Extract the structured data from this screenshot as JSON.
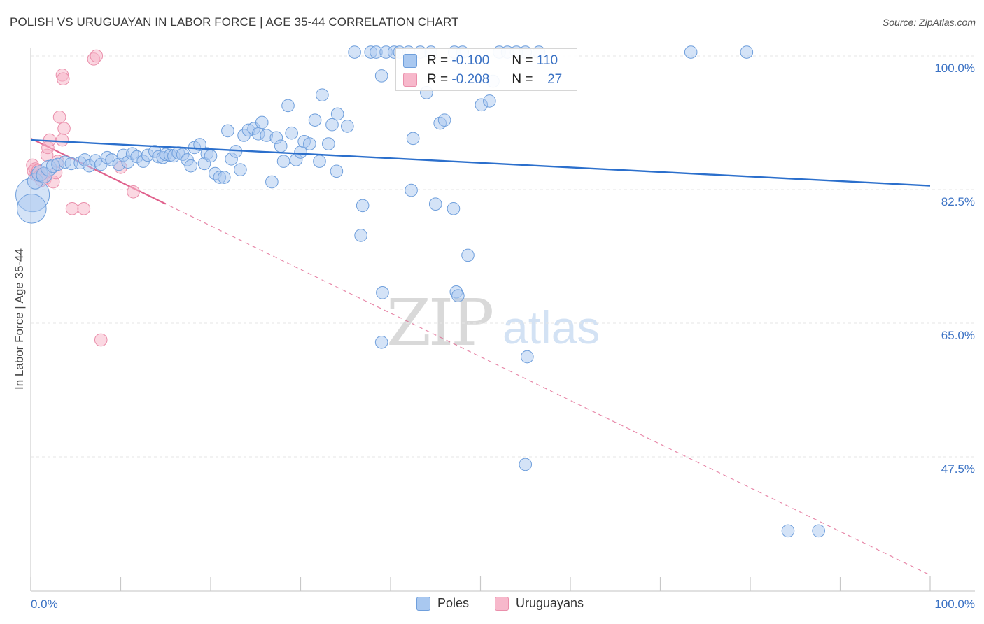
{
  "header": {
    "title": "POLISH VS URUGUAYAN IN LABOR FORCE | AGE 35-44 CORRELATION CHART",
    "source": "Source: ZipAtlas.com"
  },
  "watermark": {
    "zip": "ZIP",
    "atlas": "atlas"
  },
  "stats_legend": {
    "r_label": "R =",
    "n_label": "N =",
    "rows": [
      {
        "r": "-0.100",
        "n": "110",
        "color": "#a9c8f0"
      },
      {
        "r": "-0.208",
        "n": "27",
        "color": "#f7b8cb"
      }
    ]
  },
  "bottom_legend": [
    "Poles",
    "Uruguayans"
  ],
  "colors": {
    "poles_fill": "#a9c8f0",
    "poles_stroke": "#6f9fdc",
    "poles_line": "#2b6fcc",
    "uru_fill": "#f7b8cb",
    "uru_stroke": "#ea8fab",
    "uru_line": "#e0608c",
    "tick_text": "#3b72c4",
    "grid": "#e6e6e6"
  },
  "chart_data": {
    "type": "scatter",
    "title": "POLISH VS URUGUAYAN IN LABOR FORCE | AGE 35-44 CORRELATION CHART",
    "xlabel": "",
    "ylabel": "In Labor Force | Age 35-44",
    "xlim": [
      0,
      100
    ],
    "ylim": [
      32,
      101.5
    ],
    "x_tick_labels": [
      "0.0%",
      "100.0%"
    ],
    "y_ticks": [
      100,
      82.5,
      65,
      47.5
    ],
    "y_tick_labels": [
      "100.0%",
      "82.5%",
      "65.0%",
      "47.5%"
    ],
    "grid": "horizontal dashed",
    "legend_position": "bottom",
    "series": [
      {
        "name": "Poles",
        "r": -0.1,
        "n": 110,
        "trend": {
          "x": [
            0,
            100
          ],
          "y": [
            89.0,
            83.0
          ]
        },
        "points": [
          [
            0.2,
            81.8,
            30
          ],
          [
            0.1,
            80.0,
            26
          ],
          [
            0.5,
            83.6,
            14
          ],
          [
            1.0,
            84.6,
            14
          ],
          [
            1.5,
            84.4,
            14
          ],
          [
            2.0,
            85.3,
            14
          ],
          [
            2.5,
            85.6,
            12
          ],
          [
            3.0,
            85.8,
            11
          ],
          [
            3.8,
            86.1,
            11
          ],
          [
            4.5,
            85.9,
            11
          ],
          [
            5.5,
            86.0,
            11
          ],
          [
            6.0,
            86.4,
            11
          ],
          [
            6.5,
            85.6,
            11
          ],
          [
            7.2,
            86.3,
            11
          ],
          [
            7.8,
            85.8,
            11
          ],
          [
            8.5,
            86.7,
            11
          ],
          [
            9.0,
            86.4,
            11
          ],
          [
            9.8,
            85.8,
            11
          ],
          [
            10.3,
            87.0,
            11
          ],
          [
            10.8,
            86.1,
            11
          ],
          [
            11.3,
            87.2,
            11
          ],
          [
            11.8,
            86.8,
            11
          ],
          [
            12.5,
            86.2,
            11
          ],
          [
            13.0,
            87.0,
            11
          ],
          [
            13.8,
            87.5,
            11
          ],
          [
            14.2,
            86.8,
            11
          ],
          [
            14.7,
            86.7,
            11
          ],
          [
            15.0,
            87.1,
            11
          ],
          [
            15.5,
            87.0,
            11
          ],
          [
            15.9,
            86.9,
            11
          ],
          [
            16.4,
            87.3,
            11
          ],
          [
            16.9,
            87.1,
            11
          ],
          [
            17.4,
            86.4,
            11
          ],
          [
            17.8,
            85.6,
            11
          ],
          [
            18.2,
            88.0,
            11
          ],
          [
            18.8,
            88.4,
            11
          ],
          [
            19.3,
            85.9,
            11
          ],
          [
            19.6,
            87.2,
            11
          ],
          [
            20.0,
            86.9,
            11
          ],
          [
            20.5,
            84.6,
            11
          ],
          [
            21.0,
            84.1,
            11
          ],
          [
            21.5,
            84.1,
            11
          ],
          [
            21.9,
            90.2,
            11
          ],
          [
            22.3,
            86.5,
            11
          ],
          [
            22.8,
            87.5,
            11
          ],
          [
            23.3,
            85.1,
            11
          ],
          [
            23.7,
            89.6,
            11
          ],
          [
            24.2,
            90.3,
            11
          ],
          [
            24.8,
            90.5,
            11
          ],
          [
            25.3,
            89.8,
            11
          ],
          [
            25.7,
            91.3,
            11
          ],
          [
            26.2,
            89.6,
            11
          ],
          [
            26.8,
            83.5,
            11
          ],
          [
            27.3,
            89.3,
            11
          ],
          [
            27.8,
            88.2,
            11
          ],
          [
            28.1,
            86.2,
            11
          ],
          [
            28.6,
            93.5,
            11
          ],
          [
            29.0,
            89.9,
            11
          ],
          [
            29.5,
            86.4,
            11
          ],
          [
            30.0,
            87.4,
            11
          ],
          [
            30.4,
            88.8,
            11
          ],
          [
            31.0,
            88.5,
            11
          ],
          [
            31.6,
            91.6,
            11
          ],
          [
            32.1,
            86.2,
            11
          ],
          [
            32.4,
            94.9,
            11
          ],
          [
            33.1,
            88.5,
            11
          ],
          [
            33.5,
            91.0,
            11
          ],
          [
            34.1,
            92.4,
            11
          ],
          [
            34.0,
            84.9,
            11
          ],
          [
            36.0,
            100.5,
            11
          ],
          [
            37.8,
            100.5,
            11
          ],
          [
            35.2,
            90.8,
            11
          ],
          [
            36.9,
            80.4,
            11
          ],
          [
            36.7,
            76.5,
            11
          ],
          [
            38.4,
            100.5,
            11
          ],
          [
            39.0,
            97.4,
            11
          ],
          [
            39.5,
            100.5,
            11
          ],
          [
            39.1,
            69.0,
            11
          ],
          [
            39.0,
            62.5,
            11
          ],
          [
            40.4,
            100.5,
            11
          ],
          [
            41.0,
            100.5,
            11
          ],
          [
            42.0,
            100.5,
            11
          ],
          [
            42.3,
            82.4,
            11
          ],
          [
            42.5,
            89.2,
            11
          ],
          [
            43.3,
            100.5,
            11
          ],
          [
            44.0,
            95.2,
            11
          ],
          [
            44.5,
            100.5,
            11
          ],
          [
            45.0,
            80.6,
            11
          ],
          [
            45.5,
            91.2,
            11
          ],
          [
            46.0,
            91.6,
            11
          ],
          [
            47.1,
            100.5,
            11
          ],
          [
            47.0,
            80.0,
            11
          ],
          [
            47.3,
            69.1,
            11
          ],
          [
            47.5,
            68.6,
            11
          ],
          [
            48.6,
            73.9,
            11
          ],
          [
            50.1,
            93.6,
            11
          ],
          [
            51.0,
            94.1,
            11
          ],
          [
            51.4,
            96.7,
            11
          ],
          [
            52.1,
            100.5,
            11
          ],
          [
            53.0,
            100.5,
            11
          ],
          [
            54.0,
            100.5,
            11
          ],
          [
            55.0,
            100.5,
            11
          ],
          [
            56.5,
            100.5,
            11
          ],
          [
            48.0,
            100.5,
            11
          ],
          [
            55.2,
            60.6,
            11
          ],
          [
            55.0,
            46.5,
            11
          ],
          [
            73.4,
            100.5,
            11
          ],
          [
            79.6,
            100.5,
            11
          ],
          [
            84.2,
            37.8,
            11
          ],
          [
            87.6,
            37.8,
            11
          ]
        ]
      },
      {
        "name": "Uruguayans",
        "r": -0.208,
        "n": 27,
        "trend": {
          "x": [
            0,
            100
          ],
          "y": [
            89.2,
            32.0
          ]
        },
        "trend_solid_until_x": 15,
        "points": [
          [
            0.2,
            85.7,
            11
          ],
          [
            0.3,
            84.9,
            11
          ],
          [
            0.5,
            85.2,
            11
          ],
          [
            0.6,
            84.4,
            11
          ],
          [
            0.8,
            85.0,
            11
          ],
          [
            1.0,
            84.3,
            11
          ],
          [
            1.2,
            83.7,
            11
          ],
          [
            1.4,
            84.6,
            11
          ],
          [
            1.6,
            83.9,
            11
          ],
          [
            1.8,
            87.0,
            11
          ],
          [
            1.9,
            88.0,
            11
          ],
          [
            2.1,
            89.0,
            11
          ],
          [
            2.5,
            83.5,
            11
          ],
          [
            2.8,
            84.7,
            11
          ],
          [
            3.0,
            86.2,
            11
          ],
          [
            3.2,
            92.0,
            11
          ],
          [
            3.5,
            97.5,
            11
          ],
          [
            3.6,
            97.0,
            11
          ],
          [
            3.7,
            90.5,
            11
          ],
          [
            3.5,
            89.0,
            11
          ],
          [
            4.6,
            80.0,
            11
          ],
          [
            5.9,
            80.0,
            11
          ],
          [
            7.0,
            99.6,
            11
          ],
          [
            7.3,
            100.0,
            11
          ],
          [
            7.8,
            62.8,
            11
          ],
          [
            10.0,
            85.4,
            11
          ],
          [
            11.4,
            82.2,
            11
          ]
        ]
      }
    ]
  }
}
